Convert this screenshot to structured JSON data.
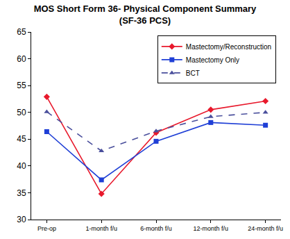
{
  "chart_data": {
    "type": "line",
    "title": "MOS Short Form 36- Physical Component Summary",
    "subtitle": "(SF-36 PCS)",
    "categories": [
      "Pre-op",
      "1-month f/u",
      "6-month f/u",
      "12-month f/u",
      "24-month f/u"
    ],
    "series": [
      {
        "name": "Mastectomy/Reconstruction",
        "color": "#e8192c",
        "marker": "diamond",
        "line_style": "solid",
        "values": [
          52.9,
          34.8,
          46.2,
          50.5,
          52.1
        ]
      },
      {
        "name": "Mastectomy Only",
        "color": "#1f3fd6",
        "marker": "square",
        "line_style": "solid",
        "values": [
          46.4,
          37.4,
          44.6,
          48.1,
          47.6
        ]
      },
      {
        "name": "BCT",
        "color": "#4a4f9c",
        "marker": "triangle-up",
        "line_style": "dash",
        "values": [
          50.1,
          42.8,
          46.5,
          49.2,
          50.0
        ]
      }
    ],
    "ylim": [
      30,
      65
    ],
    "yticks": [
      30,
      35,
      40,
      45,
      50,
      55,
      60,
      65
    ],
    "grid": false,
    "legend": "top right"
  }
}
